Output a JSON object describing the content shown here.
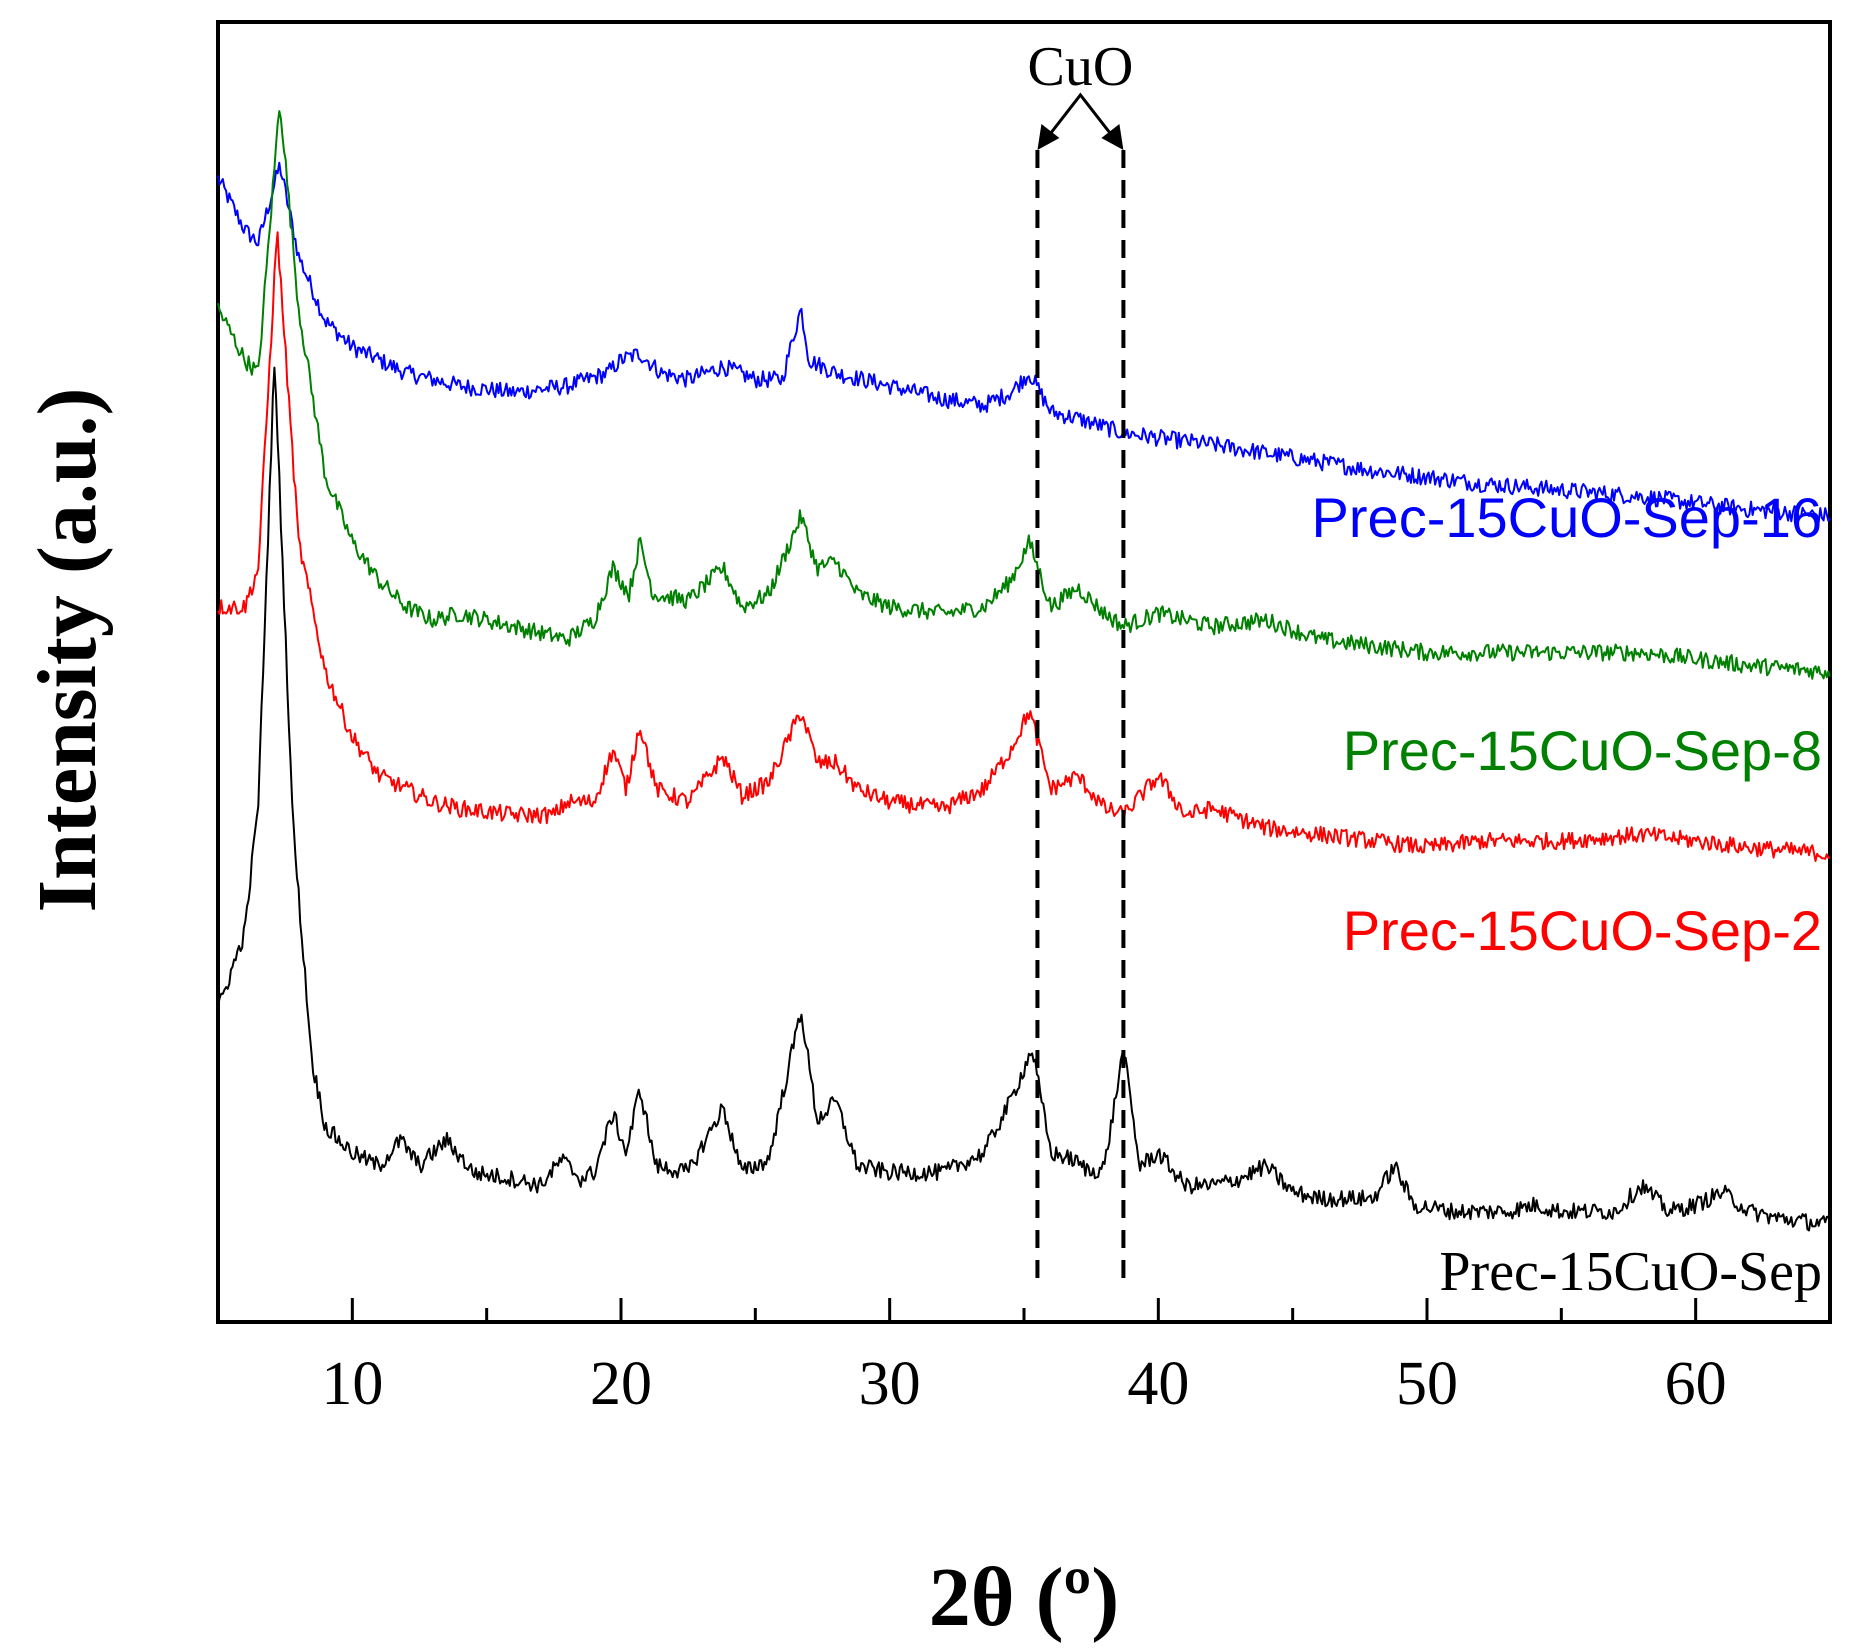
{
  "chart_data": {
    "type": "line",
    "title": "",
    "xlabel": "2θ (º)",
    "ylabel": "Intensity (a.u.)",
    "xlim": [
      5,
      65
    ],
    "ylim": [
      0,
      100
    ],
    "xticks": [
      10,
      20,
      30,
      40,
      50,
      60
    ],
    "grid": false,
    "annotation": {
      "text": "CuO",
      "x_positions": [
        35.5,
        38.7
      ]
    },
    "series": [
      {
        "name": "Prec-15CuO-Sep-16",
        "color": "#0000ff",
        "x": [
          5,
          6,
          6.5,
          7.3,
          8,
          9,
          10,
          12,
          14,
          16,
          18,
          19.5,
          20,
          20.7,
          21.5,
          22.5,
          23.8,
          25,
          26,
          26.7,
          27,
          28,
          30,
          32,
          33.5,
          34.5,
          35.2,
          36,
          37,
          38.5,
          40,
          42,
          45,
          48,
          50,
          52,
          55,
          58,
          60,
          62,
          65
        ],
        "values": [
          88,
          84,
          83,
          89,
          82,
          77,
          75,
          73,
          72,
          71.5,
          72,
          73,
          74,
          74.5,
          73,
          72.5,
          73.5,
          72.5,
          72.5,
          78,
          74,
          73,
          72,
          71,
          70.5,
          71.5,
          73,
          70,
          69.5,
          68.5,
          68,
          67.5,
          66.5,
          65.5,
          65,
          64.5,
          64,
          63.5,
          63,
          62.5,
          62
        ]
      },
      {
        "name": "Prec-15CuO-Sep-8",
        "color": "#008000",
        "x": [
          5,
          6,
          6.5,
          7.3,
          8,
          9,
          10,
          11,
          12,
          13,
          14,
          16,
          18,
          19,
          19.7,
          20.3,
          20.7,
          21.2,
          22.5,
          23.8,
          24.5,
          25.5,
          26.7,
          27.3,
          28,
          28.8,
          30,
          32,
          33.5,
          34.5,
          35.2,
          36,
          37,
          38,
          38.7,
          40,
          42,
          44,
          46,
          48,
          50,
          52,
          55,
          58,
          60,
          62,
          65
        ],
        "values": [
          78,
          74,
          73,
          94,
          78,
          65,
          60,
          57,
          55,
          54,
          54.5,
          53.5,
          52.5,
          54,
          58,
          56,
          60,
          56,
          55.5,
          58,
          55,
          56,
          62,
          58,
          58.5,
          56,
          55,
          54.5,
          55,
          57,
          60,
          55,
          56.5,
          54.5,
          53.5,
          54.5,
          53.5,
          54,
          52.5,
          52,
          51.5,
          51.5,
          51.5,
          51.5,
          51,
          50.5,
          50
        ]
      },
      {
        "name": "Prec-15CuO-Sep-2",
        "color": "#ff0000",
        "x": [
          5,
          6,
          6.5,
          7.2,
          8,
          9,
          10,
          11,
          12,
          13,
          14,
          16,
          17.5,
          18,
          19,
          19.7,
          20.2,
          20.7,
          21.3,
          22.5,
          23.8,
          24.5,
          25.5,
          26.7,
          27.3,
          28,
          28.8,
          30,
          32,
          33.5,
          34.5,
          35.2,
          36,
          37,
          38,
          38.7,
          40,
          41,
          42,
          44,
          46,
          48,
          50,
          52,
          55,
          58,
          60,
          62,
          65
        ],
        "values": [
          55,
          55,
          58,
          84,
          60,
          50,
          45,
          42,
          41,
          40,
          39.5,
          39,
          39,
          40,
          40,
          44,
          41,
          46,
          41,
          40,
          43.5,
          40.5,
          41.5,
          47,
          43,
          43,
          41,
          40,
          39.5,
          41,
          44,
          47,
          41,
          42,
          39.5,
          39,
          42,
          39,
          39.5,
          38,
          37.5,
          37,
          36.5,
          37,
          37,
          37.5,
          37,
          36.5,
          36
        ]
      },
      {
        "name": "Prec-15CuO-Sep",
        "color": "#000000",
        "x": [
          5,
          6,
          6.5,
          7.1,
          7.8,
          8.5,
          9,
          10,
          11,
          11.8,
          12.5,
          13.5,
          14.5,
          16,
          17,
          17.8,
          18.5,
          19,
          19.7,
          20.2,
          20.7,
          21.3,
          22.5,
          23.8,
          24.5,
          25.5,
          26.7,
          27.3,
          28,
          28.8,
          30,
          32,
          33.5,
          34.5,
          35.3,
          36,
          36.8,
          37.5,
          38,
          38.7,
          39.3,
          40,
          41,
          42,
          43,
          44,
          45,
          46,
          48,
          48.8,
          49.5,
          51,
          53,
          54,
          55,
          57,
          58,
          59,
          60,
          61,
          62,
          63,
          65
        ],
        "values": [
          24,
          30,
          40,
          74,
          38,
          20,
          15,
          13,
          12,
          14,
          12,
          14,
          11.5,
          11,
          10.5,
          12.5,
          11,
          11.5,
          16,
          13,
          18,
          12,
          11.5,
          16.5,
          11.5,
          12.5,
          24,
          15.5,
          17,
          12,
          11.5,
          11.5,
          13,
          17,
          21,
          13,
          12.5,
          11.5,
          12,
          21,
          12,
          13,
          10.5,
          10.5,
          11,
          12,
          10,
          9.5,
          9.5,
          12,
          9,
          8.5,
          8.5,
          9,
          8.5,
          8.5,
          10.5,
          8.5,
          9,
          10,
          8.5,
          8,
          7.5
        ]
      }
    ],
    "series_labels": [
      "Prec-15CuO-Sep-16",
      "Prec-15CuO-Sep-8",
      "Prec-15CuO-Sep-2",
      "Prec-15CuO-Sep"
    ]
  }
}
